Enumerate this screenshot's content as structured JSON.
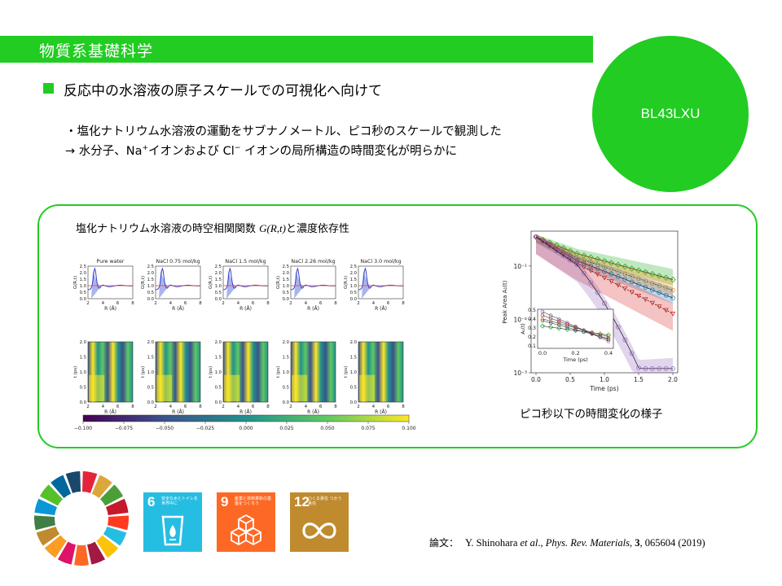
{
  "header": {
    "title": "物質系基礎科学",
    "beamline": "BL43LXU"
  },
  "main": {
    "subtitle": "反応中の水溶液の原子スケールでの可視化へ向けて",
    "desc_line1": "・塩化ナトリウム水溶液の運動をサブナノメートル、ピコ秒のスケールで観測した",
    "desc_line2_a": "→ 水分子、Na",
    "desc_line2_sup1": "+",
    "desc_line2_b": "イオンおよび Cl",
    "desc_line2_sup2": "−",
    "desc_line2_c": " イオンの局所構造の時間変化が明らかに"
  },
  "figure_left": {
    "title_a": "塩化ナトリウム水溶液の時空相関関数 ",
    "title_math": "G(R,t)",
    "title_b": "と濃度依存性",
    "panel_titles": [
      "Pure water",
      "NaCl 0.75 mol/kg",
      "NaCl 1.5 mol/kg",
      "NaCl 2.26 mol/kg",
      "NaCl 3.0 mol/kg"
    ],
    "y_label_top": "G(R,t)",
    "y_label_bottom": "t (ps)",
    "x_label": "R (Å)",
    "y_ticks_top": [
      "2.5",
      "2.0",
      "1.5",
      "1.0",
      "0.5",
      "0.0"
    ],
    "y_ticks_bottom": [
      "2.0",
      "1.5",
      "1.0",
      "0.5",
      "0.0"
    ],
    "x_ticks": [
      "2",
      "4",
      "6",
      "8"
    ],
    "colorbar_ticks": [
      "−0.100",
      "−0.075",
      "−0.050",
      "−0.025",
      "0.000",
      "0.025",
      "0.050",
      "0.075",
      "0.100"
    ],
    "colorbar_colors": [
      "#440154",
      "#3b528b",
      "#21918c",
      "#5ec962",
      "#fde725"
    ]
  },
  "figure_right": {
    "caption": "ピコ秒以下の時間変化の様子",
    "y_label": "Peak Area A₁(t)",
    "x_label": "Time (ps)",
    "x_ticks": [
      "0.0",
      "0.5",
      "1.0",
      "1.5",
      "2.0"
    ],
    "y_ticks": [
      "10⁻¹",
      "10⁻²",
      "10⁻³"
    ],
    "inset_y_label": "A₁(t)",
    "inset_y_ticks": [
      "0.5",
      "0.4",
      "0.3",
      "0.2",
      "0.1"
    ],
    "inset_x_ticks": [
      "0.0",
      "0.2",
      "0.4"
    ],
    "inset_x_label": "Time (ps)",
    "series_colors": [
      "#22aa22",
      "#ff8800",
      "#1f77b4",
      "#d62728",
      "#9467bd"
    ]
  },
  "sdg": {
    "tiles": [
      {
        "number": "6",
        "text": "安全な水とトイレを世界中に",
        "color": "#26bde2"
      },
      {
        "number": "9",
        "text": "産業と技術革新の基盤をつくろう",
        "color": "#fd6925"
      },
      {
        "number": "12",
        "text": "つくる責任 つかう責任",
        "color": "#bf8b2e"
      }
    ],
    "wheel_colors": [
      "#e5243b",
      "#dda63a",
      "#4c9f38",
      "#c5192d",
      "#ff3a21",
      "#26bde2",
      "#fcc30b",
      "#a21942",
      "#fd6925",
      "#dd1367",
      "#fd9d24",
      "#bf8b2e",
      "#3f7e44",
      "#0a97d9",
      "#56c02b",
      "#00689d",
      "#19486a"
    ]
  },
  "paper": {
    "label": "論文：",
    "authors": "Y. Shinohara ",
    "etal": "et al",
    "journal_sep": "., ",
    "journal": "Phys. Rev. Materials",
    "sep2": ", ",
    "volume": "3",
    "rest": ", 065604 (2019)"
  }
}
